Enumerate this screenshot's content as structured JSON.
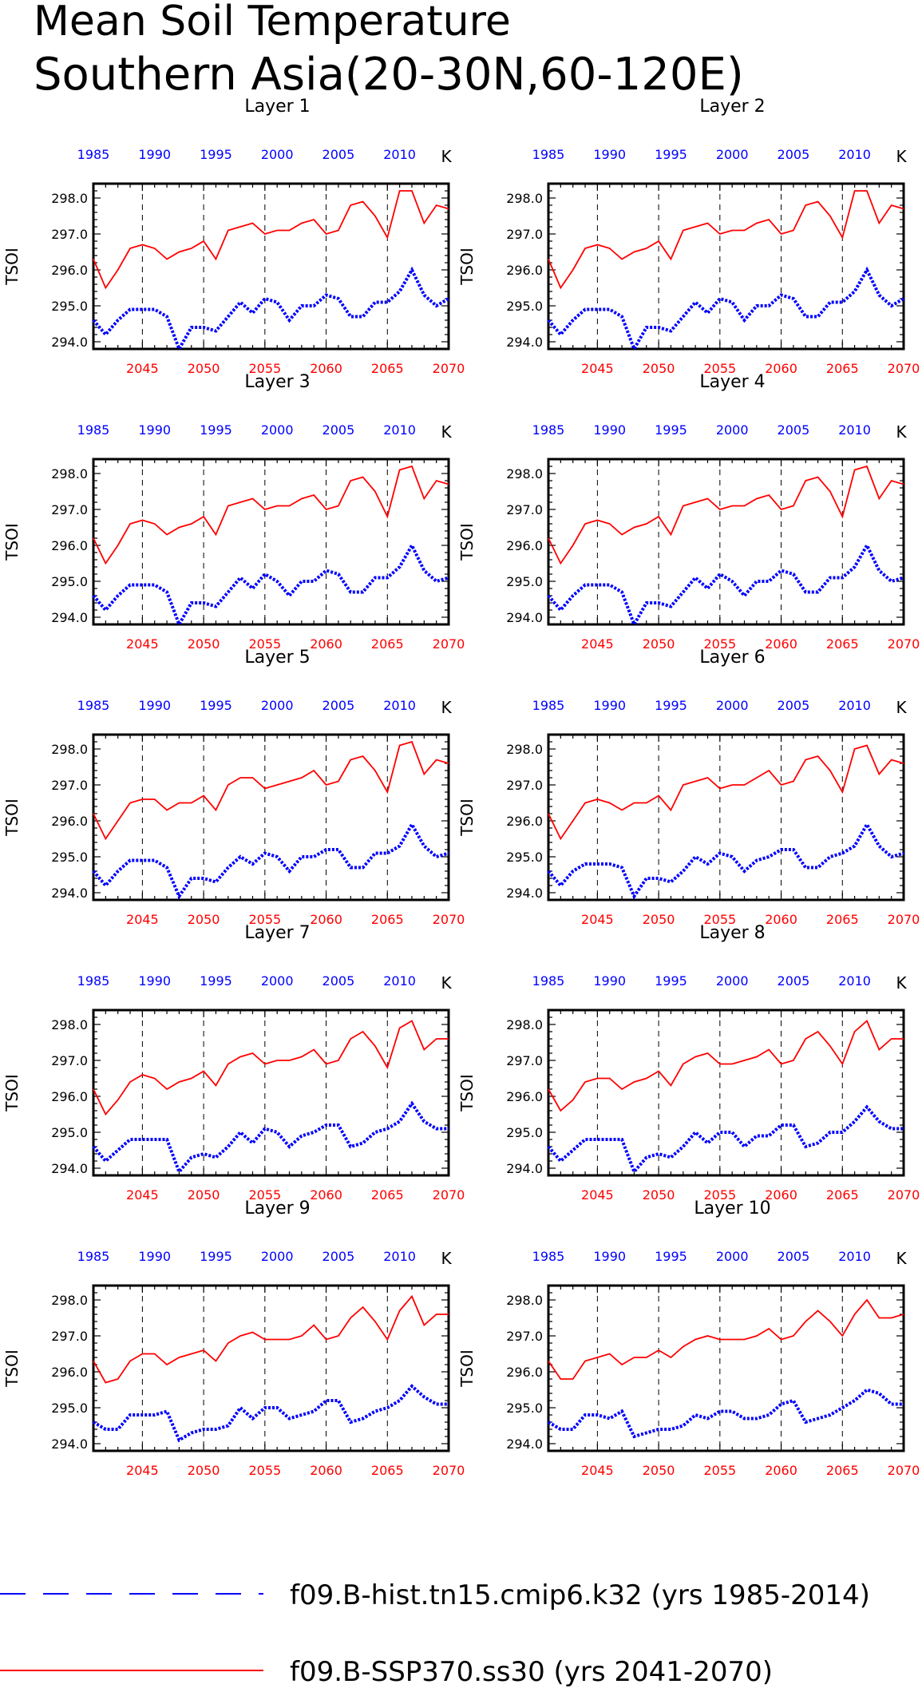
{
  "title": {
    "line1": "Mean Soil Temperature",
    "line2": "Southern Asia(20-30N,60-120E)"
  },
  "colors": {
    "hist": "#0000ff",
    "ssp": "#ff0000",
    "axis": "#000000",
    "grid": "#000000"
  },
  "legend": [
    {
      "label": "f09.B-hist.tn15.cmip6.k32 (yrs 1985-2014)",
      "color": "#0000ff",
      "style": "dashed"
    },
    {
      "label": "f09.B-SSP370.ss30 (yrs 2041-2070)",
      "color": "#ff0000",
      "style": "solid"
    }
  ],
  "chart_data": {
    "type": "line",
    "ylabel": "TSOI",
    "units": "K",
    "ylim": [
      293.8,
      298.4
    ],
    "yticks": [
      294.0,
      295.0,
      296.0,
      297.0,
      298.0
    ],
    "ytick_labels": [
      "294.0",
      "295.0",
      "296.0",
      "297.0",
      "298.0"
    ],
    "top_axis": {
      "range": [
        1985,
        2014
      ],
      "ticks": [
        1985,
        1990,
        1995,
        2000,
        2005,
        2010
      ],
      "color": "#0000ff"
    },
    "bottom_axis": {
      "range": [
        2041,
        2070
      ],
      "ticks": [
        2045,
        2050,
        2055,
        2060,
        2065,
        2070
      ],
      "color": "#ff0000"
    },
    "gridlines_x": [
      2045,
      2050,
      2055,
      2060,
      2065
    ],
    "panels": [
      {
        "title": "Layer 1",
        "hist": [
          294.6,
          294.2,
          294.6,
          294.9,
          294.9,
          294.9,
          294.7,
          293.8,
          294.4,
          294.4,
          294.3,
          294.7,
          295.1,
          294.8,
          295.2,
          295.1,
          294.6,
          295.0,
          295.0,
          295.3,
          295.2,
          294.7,
          294.7,
          295.1,
          295.1,
          295.4,
          296.0,
          295.3,
          295.0,
          295.2
        ],
        "ssp": [
          296.3,
          295.5,
          296.0,
          296.6,
          296.7,
          296.6,
          296.3,
          296.5,
          296.6,
          296.8,
          296.3,
          297.1,
          297.2,
          297.3,
          297.0,
          297.1,
          297.1,
          297.3,
          297.4,
          297.0,
          297.1,
          297.8,
          297.9,
          297.5,
          296.9,
          298.2,
          298.2,
          297.3,
          297.8,
          297.7
        ]
      },
      {
        "title": "Layer 2",
        "hist": [
          294.6,
          294.2,
          294.6,
          294.9,
          294.9,
          294.9,
          294.7,
          293.8,
          294.4,
          294.4,
          294.3,
          294.7,
          295.1,
          294.8,
          295.2,
          295.1,
          294.6,
          295.0,
          295.0,
          295.3,
          295.2,
          294.7,
          294.7,
          295.1,
          295.1,
          295.4,
          296.0,
          295.3,
          295.0,
          295.2
        ],
        "ssp": [
          296.3,
          295.5,
          296.0,
          296.6,
          296.7,
          296.6,
          296.3,
          296.5,
          296.6,
          296.8,
          296.3,
          297.1,
          297.2,
          297.3,
          297.0,
          297.1,
          297.1,
          297.3,
          297.4,
          297.0,
          297.1,
          297.8,
          297.9,
          297.5,
          296.9,
          298.2,
          298.2,
          297.3,
          297.8,
          297.7
        ]
      },
      {
        "title": "Layer 3",
        "hist": [
          294.6,
          294.2,
          294.6,
          294.9,
          294.9,
          294.9,
          294.7,
          293.8,
          294.4,
          294.4,
          294.3,
          294.7,
          295.1,
          294.8,
          295.2,
          295.0,
          294.6,
          295.0,
          295.0,
          295.3,
          295.2,
          294.7,
          294.7,
          295.1,
          295.1,
          295.4,
          296.0,
          295.3,
          295.0,
          295.1
        ],
        "ssp": [
          296.2,
          295.5,
          296.0,
          296.6,
          296.7,
          296.6,
          296.3,
          296.5,
          296.6,
          296.8,
          296.3,
          297.1,
          297.2,
          297.3,
          297.0,
          297.1,
          297.1,
          297.3,
          297.4,
          297.0,
          297.1,
          297.8,
          297.9,
          297.5,
          296.8,
          298.1,
          298.2,
          297.3,
          297.8,
          297.7
        ]
      },
      {
        "title": "Layer 4",
        "hist": [
          294.6,
          294.2,
          294.6,
          294.9,
          294.9,
          294.9,
          294.7,
          293.8,
          294.4,
          294.4,
          294.3,
          294.7,
          295.1,
          294.8,
          295.2,
          295.0,
          294.6,
          295.0,
          295.0,
          295.3,
          295.2,
          294.7,
          294.7,
          295.1,
          295.1,
          295.4,
          296.0,
          295.3,
          295.0,
          295.1
        ],
        "ssp": [
          296.2,
          295.5,
          296.0,
          296.6,
          296.7,
          296.6,
          296.3,
          296.5,
          296.6,
          296.8,
          296.3,
          297.1,
          297.2,
          297.3,
          297.0,
          297.1,
          297.1,
          297.3,
          297.4,
          297.0,
          297.1,
          297.8,
          297.9,
          297.5,
          296.8,
          298.1,
          298.2,
          297.3,
          297.8,
          297.7
        ]
      },
      {
        "title": "Layer 5",
        "hist": [
          294.6,
          294.2,
          294.6,
          294.9,
          294.9,
          294.9,
          294.7,
          293.9,
          294.4,
          294.4,
          294.3,
          294.7,
          295.0,
          294.8,
          295.1,
          295.0,
          294.6,
          295.0,
          295.0,
          295.2,
          295.2,
          294.7,
          294.7,
          295.1,
          295.1,
          295.3,
          295.9,
          295.3,
          295.0,
          295.1
        ],
        "ssp": [
          296.2,
          295.5,
          296.0,
          296.5,
          296.6,
          296.6,
          296.3,
          296.5,
          296.5,
          296.7,
          296.3,
          297.0,
          297.2,
          297.2,
          296.9,
          297.0,
          297.1,
          297.2,
          297.4,
          297.0,
          297.1,
          297.7,
          297.8,
          297.4,
          296.8,
          298.1,
          298.2,
          297.3,
          297.7,
          297.6
        ]
      },
      {
        "title": "Layer 6",
        "hist": [
          294.6,
          294.2,
          294.6,
          294.8,
          294.8,
          294.8,
          294.7,
          293.9,
          294.4,
          294.4,
          294.3,
          294.6,
          295.0,
          294.8,
          295.1,
          295.0,
          294.6,
          294.9,
          295.0,
          295.2,
          295.2,
          294.7,
          294.7,
          295.0,
          295.1,
          295.3,
          295.9,
          295.3,
          295.0,
          295.1
        ],
        "ssp": [
          296.2,
          295.5,
          296.0,
          296.5,
          296.6,
          296.5,
          296.3,
          296.5,
          296.5,
          296.7,
          296.3,
          297.0,
          297.1,
          297.2,
          296.9,
          297.0,
          297.0,
          297.2,
          297.4,
          297.0,
          297.1,
          297.7,
          297.8,
          297.4,
          296.8,
          298.0,
          298.1,
          297.3,
          297.7,
          297.6
        ]
      },
      {
        "title": "Layer 7",
        "hist": [
          294.6,
          294.2,
          294.5,
          294.8,
          294.8,
          294.8,
          294.8,
          293.9,
          294.3,
          294.4,
          294.3,
          294.6,
          295.0,
          294.7,
          295.1,
          295.0,
          294.6,
          294.9,
          295.0,
          295.2,
          295.2,
          294.6,
          294.7,
          295.0,
          295.1,
          295.3,
          295.8,
          295.3,
          295.1,
          295.1
        ],
        "ssp": [
          296.2,
          295.5,
          295.9,
          296.4,
          296.6,
          296.5,
          296.2,
          296.4,
          296.5,
          296.7,
          296.3,
          296.9,
          297.1,
          297.2,
          296.9,
          297.0,
          297.0,
          297.1,
          297.3,
          296.9,
          297.0,
          297.6,
          297.8,
          297.4,
          296.8,
          297.9,
          298.1,
          297.3,
          297.6,
          297.6
        ]
      },
      {
        "title": "Layer 8",
        "hist": [
          294.6,
          294.2,
          294.5,
          294.8,
          294.8,
          294.8,
          294.8,
          293.9,
          294.3,
          294.4,
          294.3,
          294.6,
          295.0,
          294.7,
          295.0,
          295.0,
          294.6,
          294.9,
          294.9,
          295.2,
          295.2,
          294.6,
          294.7,
          295.0,
          295.0,
          295.3,
          295.7,
          295.3,
          295.1,
          295.1
        ],
        "ssp": [
          296.2,
          295.6,
          295.9,
          296.4,
          296.5,
          296.5,
          296.2,
          296.4,
          296.5,
          296.7,
          296.3,
          296.9,
          297.1,
          297.2,
          296.9,
          296.9,
          297.0,
          297.1,
          297.3,
          296.9,
          297.0,
          297.6,
          297.8,
          297.4,
          296.9,
          297.8,
          298.1,
          297.3,
          297.6,
          297.6
        ]
      },
      {
        "title": "Layer 9",
        "hist": [
          294.6,
          294.4,
          294.4,
          294.8,
          294.8,
          294.8,
          294.9,
          294.1,
          294.3,
          294.4,
          294.4,
          294.5,
          295.0,
          294.7,
          295.0,
          295.0,
          294.7,
          294.8,
          294.9,
          295.2,
          295.2,
          294.6,
          294.7,
          294.9,
          295.0,
          295.2,
          295.6,
          295.3,
          295.1,
          295.1
        ],
        "ssp": [
          296.3,
          295.7,
          295.8,
          296.3,
          296.5,
          296.5,
          296.2,
          296.4,
          296.5,
          296.6,
          296.3,
          296.8,
          297.0,
          297.1,
          296.9,
          296.9,
          296.9,
          297.0,
          297.3,
          296.9,
          297.0,
          297.5,
          297.8,
          297.4,
          296.9,
          297.7,
          298.1,
          297.3,
          297.6,
          297.6
        ]
      },
      {
        "title": "Layer 10",
        "hist": [
          294.6,
          294.4,
          294.4,
          294.8,
          294.8,
          294.7,
          294.9,
          294.2,
          294.3,
          294.4,
          294.4,
          294.5,
          294.8,
          294.7,
          294.9,
          294.9,
          294.7,
          294.7,
          294.8,
          295.1,
          295.2,
          294.6,
          294.7,
          294.8,
          295.0,
          295.2,
          295.5,
          295.4,
          295.1,
          295.1
        ],
        "ssp": [
          296.3,
          295.8,
          295.8,
          296.3,
          296.4,
          296.5,
          296.2,
          296.4,
          296.4,
          296.6,
          296.4,
          296.7,
          296.9,
          297.0,
          296.9,
          296.9,
          296.9,
          297.0,
          297.2,
          296.9,
          297.0,
          297.4,
          297.7,
          297.4,
          297.0,
          297.6,
          298.0,
          297.5,
          297.5,
          297.6
        ]
      }
    ]
  }
}
